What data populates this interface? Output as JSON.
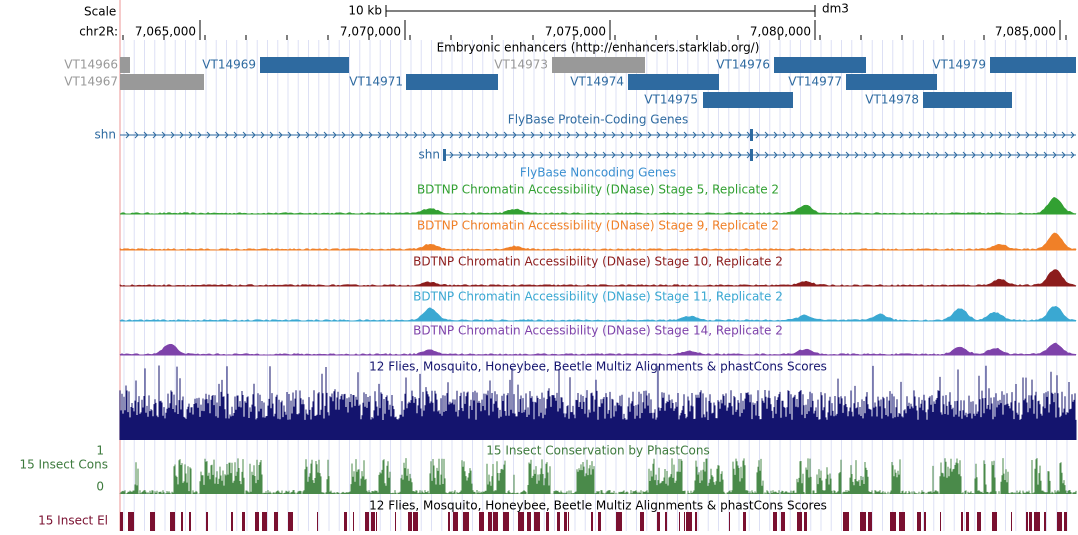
{
  "header": {
    "scale_label": "Scale",
    "scale_bar": "10 kb",
    "assembly": "dm3",
    "chrom": "chr2R:",
    "positions": [
      "7,065,000",
      "7,070,000",
      "7,075,000",
      "7,080,000",
      "7,085,000"
    ]
  },
  "enhancers": {
    "title": "Embryonic enhancers (http://enhancers.starklab.org/)",
    "items": [
      "VT14966",
      "VT14967",
      "VT14969",
      "VT14971",
      "VT14973",
      "VT14974",
      "VT14975",
      "VT14976",
      "VT14977",
      "VT14978",
      "VT14979"
    ]
  },
  "genes": {
    "title": "FlyBase Protein-Coding Genes",
    "transcripts": [
      "shn",
      "shn"
    ]
  },
  "noncoding": {
    "title": "FlyBase Noncoding Genes"
  },
  "dnase": [
    "BDTNP Chromatin Accessibility (DNase) Stage 5, Replicate 2",
    "BDTNP Chromatin Accessibility (DNase) Stage 9, Replicate 2",
    "BDTNP Chromatin Accessibility (DNase) Stage 10, Replicate 2",
    "BDTNP Chromatin Accessibility (DNase) Stage 11, Replicate 2",
    "BDTNP Chromatin Accessibility (DNase) Stage 14, Replicate 2"
  ],
  "multiz": {
    "title": "12 Flies, Mosquito, Honeybee, Beetle Multiz Alignments & phastCons Scores"
  },
  "conservation": {
    "title": "15 Insect Conservation by PhastCons",
    "label": "15 Insect Cons",
    "max": "1",
    "min": "0"
  },
  "elements": {
    "title": "12 Flies, Mosquito, Honeybee, Beetle Multiz Alignments & phastCons Scores",
    "label": "15 Insect El"
  }
}
